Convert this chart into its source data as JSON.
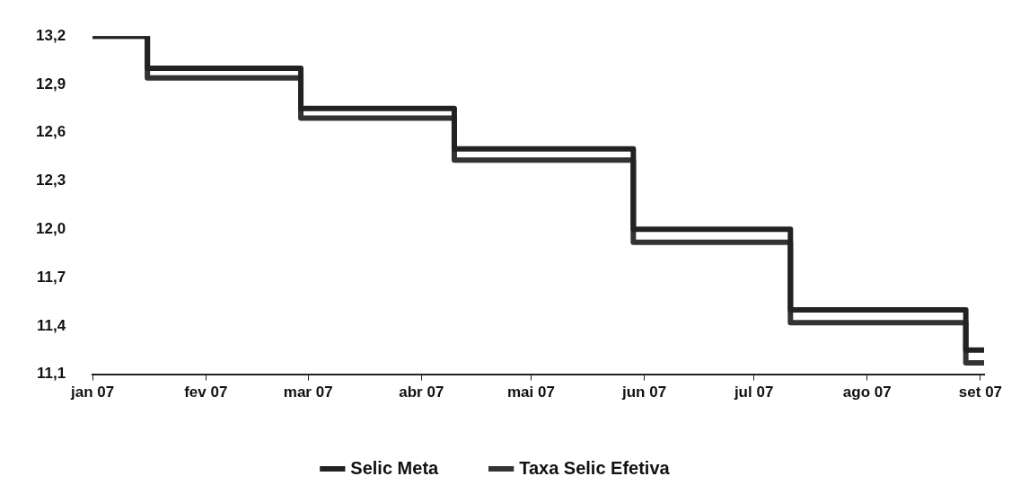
{
  "chart_data": {
    "type": "step",
    "series": [
      {
        "name": "Selic Meta",
        "color": "#222222",
        "x": [
          "2007-01-01",
          "2007-01-16",
          "2007-02-27",
          "2007-04-10",
          "2007-05-29",
          "2007-07-11",
          "2007-08-28",
          "2007-09-02"
        ],
        "values": [
          13.2,
          13.0,
          12.75,
          12.5,
          12.0,
          11.5,
          11.25,
          11.25
        ]
      },
      {
        "name": "Taxa Selic Efetiva",
        "color": "#333333",
        "x": [
          "2007-01-01",
          "2007-01-16",
          "2007-02-27",
          "2007-04-10",
          "2007-05-29",
          "2007-07-11",
          "2007-08-28",
          "2007-09-02"
        ],
        "values": [
          13.2,
          12.94,
          12.69,
          12.43,
          11.92,
          11.42,
          11.17,
          11.17
        ]
      }
    ],
    "xlim": [
      "2007-01-01",
      "2007-09-02"
    ],
    "xticks": [
      {
        "value": "2007-01-01",
        "label": "jan 07"
      },
      {
        "value": "2007-02-01",
        "label": "fev 07"
      },
      {
        "value": "2007-03-01",
        "label": "mar 07"
      },
      {
        "value": "2007-04-01",
        "label": "abr 07"
      },
      {
        "value": "2007-05-01",
        "label": "mai 07"
      },
      {
        "value": "2007-06-01",
        "label": "jun 07"
      },
      {
        "value": "2007-07-01",
        "label": "jul 07"
      },
      {
        "value": "2007-08-01",
        "label": "ago 07"
      },
      {
        "value": "2007-09-01",
        "label": "set 07"
      }
    ],
    "ylim": [
      11.1,
      13.2
    ],
    "yticks": [
      {
        "value": 11.1,
        "label": "11,1"
      },
      {
        "value": 11.4,
        "label": "11,4"
      },
      {
        "value": 11.7,
        "label": "11,7"
      },
      {
        "value": 12.0,
        "label": "12,0"
      },
      {
        "value": 12.3,
        "label": "12,3"
      },
      {
        "value": 12.6,
        "label": "12,6"
      },
      {
        "value": 12.9,
        "label": "12,9"
      },
      {
        "value": 13.2,
        "label": "13,2"
      }
    ],
    "grid": false,
    "legend": "bottom",
    "marker": "none",
    "line_style": "solid"
  }
}
